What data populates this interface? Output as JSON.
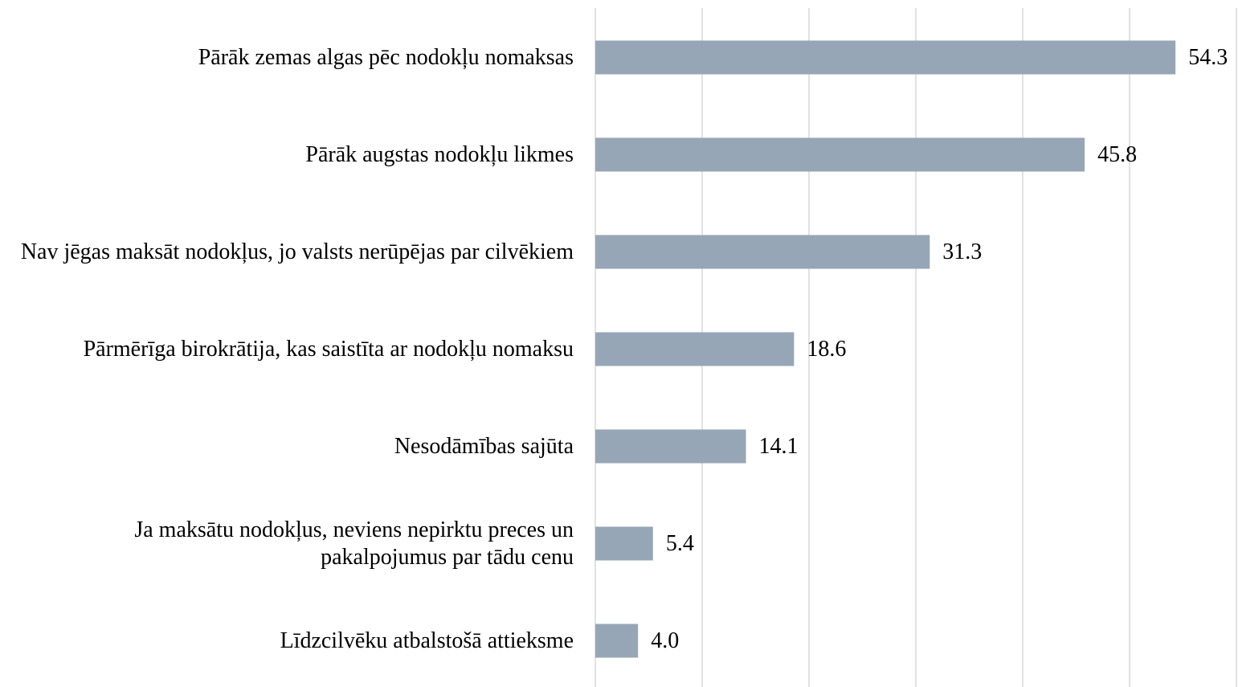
{
  "chart_data": {
    "type": "barh",
    "categories": [
      "Pārāk zemas algas pēc nodokļu nomaksas",
      "Pārāk augstas nodokļu likmes",
      "Nav jēgas maksāt nodokļus, jo valsts nerūpējas par cilvēkiem",
      "Pārmērīga birokrātija, kas saistīta ar nodokļu nomaksu",
      "Nesodāmības sajūta",
      "Ja maksātu nodokļus, neviens nepirktu preces un pakalpojumus par tādu cenu",
      "Līdzcilvēku atbalstošā attieksme"
    ],
    "values": [
      54.3,
      45.8,
      31.3,
      18.6,
      14.1,
      5.4,
      4.0
    ],
    "value_labels": [
      "54.3",
      "45.8",
      "31.3",
      "18.6",
      "14.1",
      "5.4",
      "4.0"
    ],
    "color": "#97a6b6",
    "xlim": [
      0,
      60
    ],
    "xticks": [
      0,
      10,
      20,
      30,
      40,
      50,
      60
    ],
    "grid": true
  }
}
